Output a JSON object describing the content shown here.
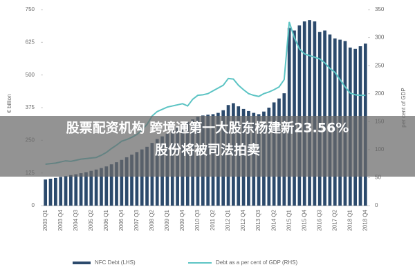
{
  "chart_data": {
    "type": "bar_line",
    "ylabel": "€ billion",
    "y2label": "per cent of GDP",
    "categories": [
      "2003 Q1",
      null,
      null,
      "2003 Q4",
      null,
      null,
      "2004 Q3",
      null,
      null,
      "2005 Q2",
      null,
      null,
      "2006 Q1",
      null,
      null,
      "2006 Q4",
      null,
      null,
      "2007 Q3",
      null,
      null,
      "2008 Q2",
      null,
      null,
      "2009 Q1",
      null,
      null,
      "2009 Q4",
      null,
      null,
      "2010 Q3",
      null,
      null,
      "2011 Q2",
      null,
      null,
      "2012 Q1",
      null,
      null,
      "2012 Q4",
      null,
      null,
      "2013 Q3",
      null,
      null,
      "2014 Q2",
      null,
      null,
      "2015 Q1",
      null,
      null,
      "2015 Q4",
      null,
      null,
      "2016 Q3",
      null,
      null,
      "2017 Q2",
      null,
      null,
      "2018 Q1",
      null,
      null,
      "2018 Q4"
    ],
    "series": [
      {
        "name": "NFC Debt (LHS)",
        "color": "#2c4a6c",
        "values": [
          100,
          103,
          106,
          110,
          113,
          117,
          120,
          124,
          128,
          133,
          138,
          144,
          150,
          158,
          166,
          175,
          185,
          195,
          205,
          215,
          225,
          240,
          255,
          265,
          275,
          290,
          300,
          310,
          320,
          330,
          340,
          345,
          348,
          350,
          355,
          365,
          385,
          392,
          380,
          370,
          362,
          355,
          350,
          360,
          375,
          395,
          410,
          430,
          680,
          670,
          690,
          705,
          710,
          705,
          665,
          670,
          655,
          640,
          635,
          630,
          605,
          600,
          610,
          620
        ]
      },
      {
        "name": "Debt as a per cent of GDP (RHS)",
        "color": "#5cc4c4",
        "axis": "y2",
        "values": [
          74,
          75,
          76,
          78,
          80,
          79,
          81,
          83,
          84,
          85,
          86,
          90,
          95,
          102,
          108,
          115,
          118,
          122,
          127,
          135,
          145,
          160,
          168,
          172,
          176,
          178,
          180,
          182,
          178,
          190,
          197,
          198,
          200,
          205,
          210,
          215,
          227,
          226,
          215,
          207,
          200,
          197,
          195,
          200,
          203,
          207,
          212,
          225,
          328,
          300,
          280,
          271,
          268,
          265,
          262,
          255,
          245,
          238,
          225,
          212,
          201,
          198,
          197,
          197
        ]
      }
    ],
    "ylim": [
      0,
      750
    ],
    "yticks": [
      0,
      125,
      250,
      375,
      500,
      625,
      750
    ],
    "y2lim": [
      0,
      350
    ],
    "y2ticks": [
      0,
      50,
      100,
      150,
      200,
      250,
      300,
      350
    ]
  },
  "overlay": {
    "lines": [
      "股票配资机构 跨境通第一大股东杨建新23.56%",
      "股份将被司法拍卖"
    ]
  }
}
